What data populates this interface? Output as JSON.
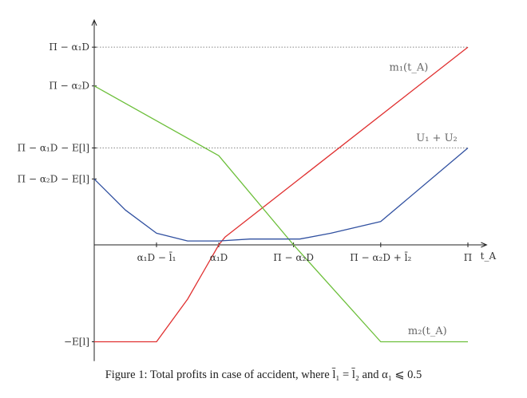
{
  "chart_data": {
    "type": "line",
    "xlabel": "t_A",
    "x_ticks": [
      {
        "x": 1.0,
        "label": "α₁D − l̄₁"
      },
      {
        "x": 2.0,
        "label": "α₁D"
      },
      {
        "x": 3.2,
        "label": "Π − α₂D"
      },
      {
        "x": 4.6,
        "label": "Π − α₂D + l̄₂"
      },
      {
        "x": 6.0,
        "label": "Π"
      }
    ],
    "y_ticks": [
      {
        "y": 5.1,
        "label": "Π − α₁D"
      },
      {
        "y": 4.1,
        "label": "Π − α₂D"
      },
      {
        "y": 2.5,
        "label": "Π − α₁D − E[l]"
      },
      {
        "y": 1.7,
        "label": "Π − α₂D − E[l]"
      },
      {
        "y": -2.5,
        "label": "−E[l]"
      }
    ],
    "reference_lines": [
      5.1,
      2.5
    ],
    "xlim": [
      -0.5,
      6.3
    ],
    "ylim": [
      -3.0,
      5.8
    ],
    "series": [
      {
        "name": "m₁(t_A)",
        "color": "#e03030",
        "x": [
          0,
          1.0,
          1.5,
          2.0,
          2.1,
          6.0
        ],
        "y": [
          -2.5,
          -2.5,
          -1.4,
          0.0,
          0.2,
          5.1
        ]
      },
      {
        "name": "m₂(t_A)",
        "color": "#6cbf3a",
        "x": [
          0,
          2.0,
          3.2,
          4.6,
          6.0
        ],
        "y": [
          4.1,
          2.3,
          0.0,
          -2.5,
          -2.5
        ]
      },
      {
        "name": "U₁ + U₂",
        "color": "#3050a0",
        "x": [
          0,
          0.5,
          1.0,
          1.5,
          2.0,
          2.5,
          3.0,
          3.3,
          3.8,
          4.6,
          6.0
        ],
        "y": [
          1.7,
          0.9,
          0.3,
          0.1,
          0.1,
          0.15,
          0.15,
          0.15,
          0.3,
          0.6,
          2.5
        ]
      }
    ]
  },
  "caption": "Figure 1: Total profits in case of accident, where l̄₁ = l̄₂ and α₁ ⩽ 0.5"
}
